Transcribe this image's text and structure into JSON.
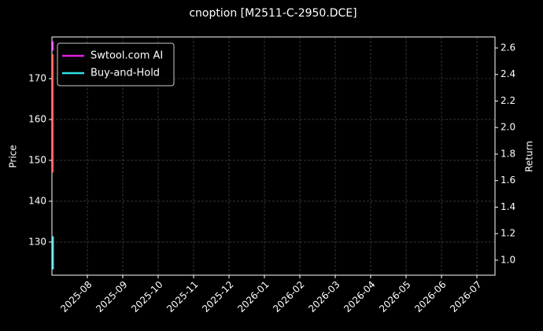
{
  "chart_data": {
    "type": "line",
    "title": "cnoption [M2511-C-2950.DCE]",
    "ylabel": "Price",
    "y2label": "Return",
    "x": [
      "2025-07",
      "2025-07",
      "2025-07"
    ],
    "series": [
      {
        "color": "#ff2020",
        "values": [
          147,
          162,
          176
        ]
      },
      {
        "name": "Swtool.com AI",
        "color": "#e020e0",
        "axis": "y2",
        "values": [
          2.58,
          2.62,
          2.65
        ]
      },
      {
        "name": "Buy-and-Hold",
        "color": "#30e0e8",
        "axis": "y2",
        "values": [
          0.93,
          1.05,
          1.18
        ]
      }
    ],
    "xlim": [
      "2025-07",
      "2026-07"
    ],
    "xticks": [
      "2025-08",
      "2025-09",
      "2025-10",
      "2025-11",
      "2025-12",
      "2026-01",
      "2026-02",
      "2026-03",
      "2026-04",
      "2026-05",
      "2026-06",
      "2026-07"
    ],
    "ylim": [
      121.9,
      180.2
    ],
    "yticks": [
      130,
      140,
      150,
      160,
      170
    ],
    "y2lim": [
      0.887,
      2.683
    ],
    "y2ticks": [
      {
        "value": 1.0,
        "label": "1.0"
      },
      {
        "value": 1.2,
        "label": "1.2"
      },
      {
        "value": 1.4,
        "label": "1.4"
      },
      {
        "value": 1.6,
        "label": "1.6"
      },
      {
        "value": 1.8,
        "label": "1.8"
      },
      {
        "value": 2.0,
        "label": "2.0"
      },
      {
        "value": 2.2,
        "label": "2.2"
      },
      {
        "value": 2.4,
        "label": "2.4"
      },
      {
        "value": 2.6,
        "label": "2.6"
      }
    ],
    "grid": true,
    "legend": "upper-left"
  }
}
